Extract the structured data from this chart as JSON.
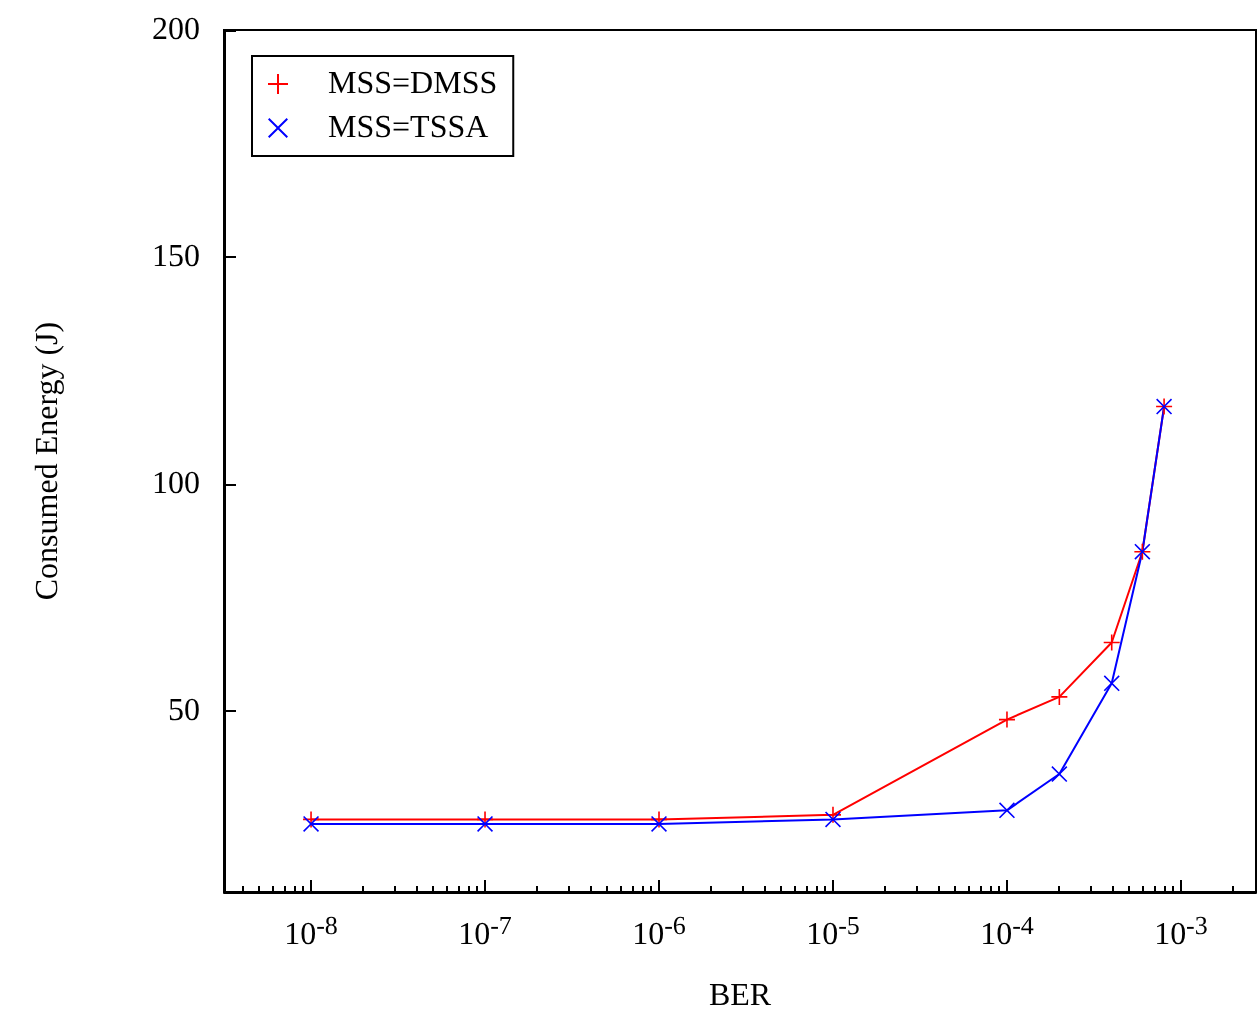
{
  "chart_data": {
    "type": "line",
    "xlabel": "BER",
    "ylabel": "Consumed Energy (J)",
    "log": "x",
    "xlim": [
      3.16e-09,
      0.0027
    ],
    "ylim": [
      10,
      200
    ],
    "xticks": [
      {
        "value": 1e-08,
        "label": "10$^{-8}$"
      },
      {
        "value": 1e-07,
        "label": "10$^{-7}$"
      },
      {
        "value": 1e-06,
        "label": "10$^{-6}$"
      },
      {
        "value": 1e-05,
        "label": "10$^{-5}$"
      },
      {
        "value": 0.0001,
        "label": "10$^{-4}$"
      },
      {
        "value": 0.001,
        "label": "10$^{-3}$"
      }
    ],
    "yticks": [
      50,
      100,
      150,
      200
    ],
    "legend": "top left",
    "grid": false,
    "x": [
      1e-08,
      1e-07,
      1e-06,
      1e-05,
      0.0001,
      0.0002,
      0.0004,
      0.0006,
      0.0008
    ],
    "series": [
      {
        "name": "MSS=DMSS",
        "color": "#ff0000",
        "marker": "plus",
        "values": [
          26,
          26,
          26,
          27,
          48,
          53,
          65,
          85,
          117
        ]
      },
      {
        "name": "MSS=TSSA",
        "color": "#0000ff",
        "marker": "cross",
        "values": [
          25,
          25,
          25,
          26,
          28,
          36,
          56,
          85,
          117
        ]
      }
    ]
  }
}
